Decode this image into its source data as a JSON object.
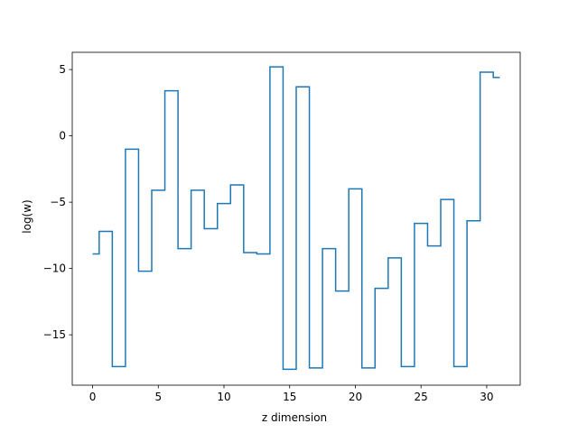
{
  "chart_data": {
    "type": "line",
    "drawstyle": "steps-mid",
    "xlabel": "z dimension",
    "ylabel": "log(w)",
    "xlim": [
      -1.55,
      32.55
    ],
    "ylim": [
      -18.8,
      6.3
    ],
    "xticks": [
      0,
      5,
      10,
      15,
      20,
      25,
      30
    ],
    "yticks": [
      -15,
      -10,
      -5,
      0,
      5
    ],
    "ytick_labels": [
      "−15",
      "−10",
      "−5",
      "0",
      "5"
    ],
    "grid": false,
    "series": [
      {
        "color": "#1f77b4",
        "x": [
          0,
          1,
          2,
          3,
          4,
          5,
          6,
          7,
          8,
          9,
          10,
          11,
          12,
          13,
          14,
          15,
          16,
          17,
          18,
          19,
          20,
          21,
          22,
          23,
          24,
          25,
          26,
          27,
          28,
          29,
          30,
          31
        ],
        "y": [
          -8.9,
          -7.2,
          -17.4,
          -1.0,
          -10.2,
          -4.1,
          3.4,
          -8.5,
          -4.1,
          -7.0,
          -5.1,
          -3.7,
          -8.8,
          -8.9,
          5.2,
          -17.6,
          3.7,
          -17.5,
          -8.5,
          -11.7,
          -4.0,
          -17.5,
          -11.5,
          -9.2,
          -17.4,
          -6.6,
          -8.3,
          -4.8,
          -17.4,
          -6.4,
          4.8,
          4.4
        ]
      }
    ]
  }
}
